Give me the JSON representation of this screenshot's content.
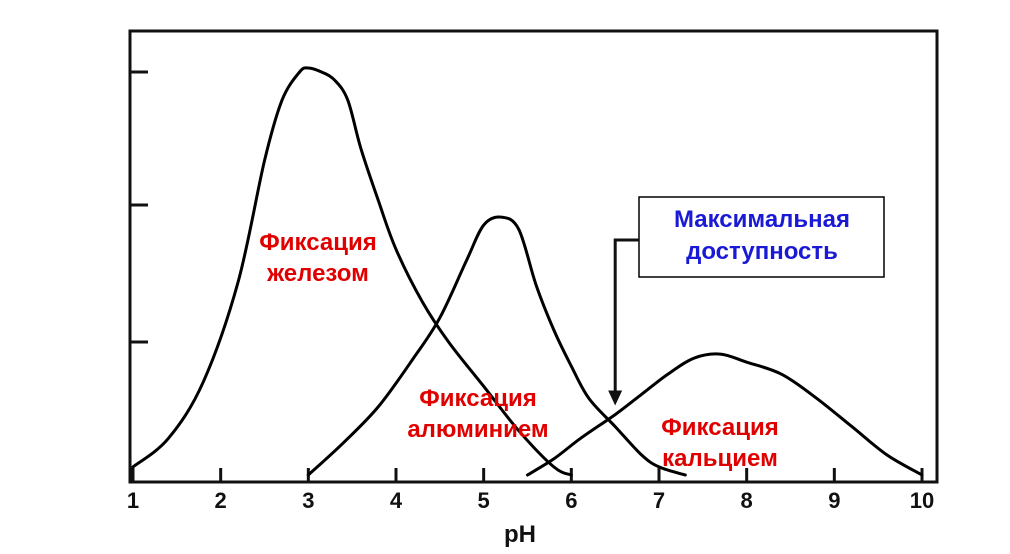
{
  "chart_data": {
    "type": "line",
    "xlabel": "pH",
    "ylabel": "",
    "title": "",
    "xlim": [
      1,
      10
    ],
    "ylim": [
      0,
      1.05
    ],
    "x_ticks": [
      1,
      2,
      3,
      4,
      5,
      6,
      7,
      8,
      9,
      10
    ],
    "y_ticks": [
      0.33,
      0.67,
      1.0
    ],
    "grid": false,
    "series": [
      {
        "label": "Фиксация\nжелезом",
        "color": "#000000",
        "label_color": "#e00000",
        "x": [
          1.0,
          1.4,
          1.8,
          2.2,
          2.5,
          2.7,
          2.9,
          3.0,
          3.15,
          3.3,
          3.45,
          3.6,
          3.8,
          4.0,
          4.3,
          4.6,
          5.0,
          5.4,
          5.8,
          6.0
        ],
        "y": [
          0.02,
          0.09,
          0.23,
          0.48,
          0.78,
          0.93,
          1.0,
          1.01,
          1.0,
          0.98,
          0.93,
          0.81,
          0.68,
          0.56,
          0.43,
          0.33,
          0.22,
          0.11,
          0.02,
          0.0
        ]
      },
      {
        "label": "Фиксация\nалюминием",
        "color": "#000000",
        "label_color": "#e00000",
        "x": [
          3.0,
          3.4,
          3.8,
          4.2,
          4.5,
          4.8,
          5.0,
          5.2,
          5.4,
          5.6,
          5.8,
          6.0,
          6.2,
          6.5,
          6.8,
          7.0,
          7.3
        ],
        "y": [
          0.0,
          0.08,
          0.17,
          0.29,
          0.39,
          0.53,
          0.62,
          0.64,
          0.61,
          0.47,
          0.36,
          0.27,
          0.19,
          0.12,
          0.05,
          0.02,
          0.0
        ]
      },
      {
        "label": "Фиксация\nкальцием",
        "color": "#000000",
        "label_color": "#e00000",
        "x": [
          5.5,
          5.8,
          6.1,
          6.5,
          6.8,
          7.1,
          7.4,
          7.7,
          8.0,
          8.4,
          8.8,
          9.2,
          9.6,
          10.0
        ],
        "y": [
          0.0,
          0.04,
          0.09,
          0.15,
          0.2,
          0.25,
          0.29,
          0.3,
          0.28,
          0.25,
          0.19,
          0.12,
          0.05,
          0.0
        ]
      }
    ],
    "annotation": {
      "text": "Максимальная\nдоступность",
      "color": "#1a1ad6",
      "arrow_x": 6.5,
      "arrow_y": 0.17,
      "box_border": "#000000"
    }
  }
}
